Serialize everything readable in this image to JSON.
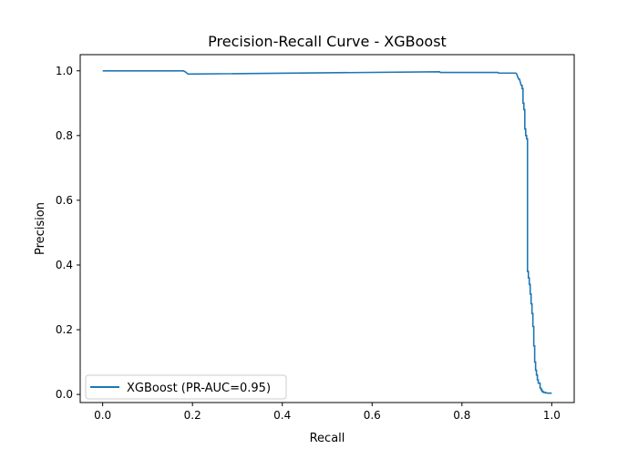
{
  "chart_data": {
    "type": "line",
    "title": "Precision-Recall Curve - XGBoost",
    "xlabel": "Recall",
    "ylabel": "Precision",
    "xlim": [
      -0.05,
      1.05
    ],
    "ylim": [
      -0.025,
      1.05
    ],
    "xticks": [
      0.0,
      0.2,
      0.4,
      0.6,
      0.8,
      1.0
    ],
    "xtick_labels": [
      "0.0",
      "0.2",
      "0.4",
      "0.6",
      "0.8",
      "1.0"
    ],
    "yticks": [
      0.0,
      0.2,
      0.4,
      0.6,
      0.8,
      1.0
    ],
    "ytick_labels": [
      "0.0",
      "0.2",
      "0.4",
      "0.6",
      "0.8",
      "1.0"
    ],
    "grid": false,
    "legend_position": "lower-left",
    "series": [
      {
        "name": "XGBoost (PR-AUC=0.95)",
        "color": "#1f77b4",
        "x": [
          0.0,
          0.18,
          0.185,
          0.19,
          0.75,
          0.752,
          0.88,
          0.882,
          0.92,
          0.922,
          0.926,
          0.928,
          0.93,
          0.932,
          0.934,
          0.934,
          0.936,
          0.936,
          0.938,
          0.938,
          0.94,
          0.94,
          0.942,
          0.942,
          0.944,
          0.944,
          0.946,
          0.946,
          0.948,
          0.948,
          0.95,
          0.95,
          0.952,
          0.952,
          0.954,
          0.954,
          0.956,
          0.956,
          0.958,
          0.958,
          0.96,
          0.96,
          0.962,
          0.962,
          0.964,
          0.964,
          0.966,
          0.966,
          0.968,
          0.968,
          0.97,
          0.97,
          0.972,
          0.972,
          0.974,
          0.974,
          0.976,
          0.976,
          0.978,
          0.978,
          0.98,
          0.98,
          0.982,
          0.982,
          0.984,
          0.984,
          0.986,
          0.986,
          0.988,
          0.99,
          1.0
        ],
        "y": [
          1.0,
          1.0,
          0.996,
          0.99,
          0.997,
          0.995,
          0.995,
          0.993,
          0.993,
          0.99,
          0.975,
          0.975,
          0.965,
          0.955,
          0.955,
          0.945,
          0.945,
          0.9,
          0.9,
          0.88,
          0.88,
          0.82,
          0.82,
          0.8,
          0.8,
          0.79,
          0.79,
          0.38,
          0.38,
          0.36,
          0.36,
          0.34,
          0.34,
          0.31,
          0.31,
          0.28,
          0.28,
          0.25,
          0.25,
          0.21,
          0.21,
          0.15,
          0.15,
          0.1,
          0.1,
          0.075,
          0.075,
          0.06,
          0.06,
          0.045,
          0.045,
          0.035,
          0.035,
          0.035,
          0.035,
          0.02,
          0.02,
          0.015,
          0.015,
          0.01,
          0.01,
          0.008,
          0.008,
          0.006,
          0.006,
          0.006,
          0.006,
          0.005,
          0.005,
          0.004,
          0.004
        ]
      }
    ]
  }
}
